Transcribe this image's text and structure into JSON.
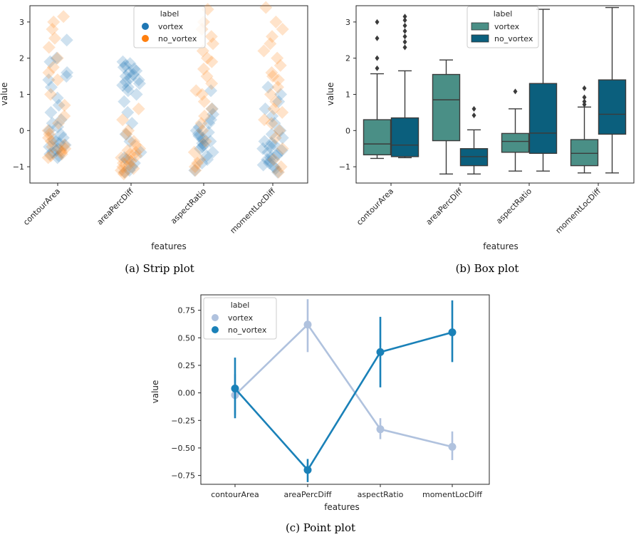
{
  "chart_data": [
    {
      "id": "strip",
      "type": "scatter",
      "caption": "(a) Strip plot",
      "xlabel": "features",
      "ylabel": "value",
      "categories": [
        "contourArea",
        "areaPercDiff",
        "aspectRatio",
        "momentLocDiff"
      ],
      "ylim": [
        -1.45,
        3.45
      ],
      "yticks": [
        -1,
        0,
        1,
        2,
        3
      ],
      "legend": {
        "title": "label",
        "position": "top-center",
        "entries": [
          "vortex",
          "no_vortex"
        ]
      },
      "colors": {
        "vortex": "#1f77b4",
        "no_vortex": "#ff7f0e"
      },
      "series": [
        {
          "name": "vortex",
          "values": [
            [
              -0.75,
              -0.7,
              -0.65,
              -0.6,
              -0.55,
              -0.5,
              -0.45,
              -0.4,
              -0.35,
              -0.3,
              -0.25,
              -0.2,
              -0.1,
              0.0,
              0.1,
              0.2,
              0.3,
              0.5,
              0.7,
              0.9,
              1.2,
              1.4,
              1.5,
              1.6,
              1.9,
              2.0,
              2.5
            ],
            [
              -1.15,
              -1.1,
              -1.0,
              -0.9,
              -0.8,
              -0.75,
              -0.6,
              -0.3,
              -0.1,
              0.2,
              0.5,
              0.8,
              1.0,
              1.1,
              1.2,
              1.25,
              1.3,
              1.35,
              1.4,
              1.45,
              1.5,
              1.55,
              1.6,
              1.65,
              1.7,
              1.75,
              1.8,
              1.85,
              1.9
            ],
            [
              -1.1,
              -0.9,
              -0.8,
              -0.7,
              -0.6,
              -0.5,
              -0.45,
              -0.4,
              -0.35,
              -0.3,
              -0.25,
              -0.2,
              -0.15,
              -0.1,
              -0.05,
              0.0,
              0.1,
              0.2,
              0.3,
              0.45,
              0.6,
              1.1
            ],
            [
              -1.15,
              -1.05,
              -1.0,
              -0.95,
              -0.9,
              -0.85,
              -0.8,
              -0.75,
              -0.7,
              -0.65,
              -0.6,
              -0.55,
              -0.5,
              -0.45,
              -0.4,
              -0.35,
              -0.3,
              -0.2,
              -0.1,
              0.0,
              0.2,
              0.4,
              0.6,
              0.8,
              1.0,
              1.2
            ]
          ]
        },
        {
          "name": "no_vortex",
          "values": [
            [
              -0.75,
              -0.7,
              -0.65,
              -0.6,
              -0.55,
              -0.5,
              -0.45,
              -0.4,
              -0.3,
              -0.2,
              -0.1,
              0.0,
              0.2,
              0.4,
              0.7,
              1.0,
              1.4,
              1.6,
              1.75,
              2.0,
              2.3,
              2.55,
              2.8,
              3.0,
              3.15
            ],
            [
              -1.2,
              -1.15,
              -1.1,
              -1.05,
              -1.0,
              -0.95,
              -0.9,
              -0.85,
              -0.8,
              -0.75,
              -0.7,
              -0.65,
              -0.6,
              -0.55,
              -0.5,
              -0.4,
              -0.3,
              -0.1,
              0.0,
              0.3,
              0.6
            ],
            [
              -1.1,
              -1.0,
              -0.9,
              -0.8,
              -0.6,
              -0.3,
              0.0,
              0.2,
              0.4,
              0.6,
              0.8,
              1.0,
              1.1,
              1.3,
              1.5,
              1.7,
              1.9,
              2.0,
              2.2,
              2.4,
              2.6,
              2.8,
              3.0,
              3.35
            ],
            [
              -1.15,
              -1.0,
              -0.8,
              -0.5,
              -0.2,
              0.0,
              0.2,
              0.3,
              0.5,
              0.6,
              0.8,
              1.0,
              1.2,
              1.4,
              1.5,
              1.6,
              1.8,
              2.0,
              2.2,
              2.4,
              2.6,
              2.8,
              3.0,
              3.4
            ]
          ]
        }
      ]
    },
    {
      "id": "box",
      "type": "box",
      "caption": "(b) Box plot",
      "xlabel": "features",
      "ylabel": "value",
      "categories": [
        "contourArea",
        "areaPercDiff",
        "aspectRatio",
        "momentLocDiff"
      ],
      "ylim": [
        -1.45,
        3.45
      ],
      "yticks": [
        -1,
        0,
        1,
        2,
        3
      ],
      "legend": {
        "title": "label",
        "position": "top-center",
        "entries": [
          "vortex",
          "no_vortex"
        ]
      },
      "colors": {
        "vortex": "#4a8f86",
        "no_vortex": "#0b5f7d"
      },
      "series": [
        {
          "name": "vortex",
          "boxes": [
            {
              "q1": -0.67,
              "median": -0.37,
              "q3": 0.3,
              "whisker_low": -0.77,
              "whisker_high": 1.57,
              "outliers": [
                1.72,
                2.0,
                2.55,
                3.0
              ]
            },
            {
              "q1": -0.28,
              "median": 0.85,
              "q3": 1.55,
              "whisker_low": -1.2,
              "whisker_high": 1.95,
              "outliers": []
            },
            {
              "q1": -0.6,
              "median": -0.3,
              "q3": -0.08,
              "whisker_low": -1.12,
              "whisker_high": 0.6,
              "outliers": [
                1.08
              ]
            },
            {
              "q1": -0.97,
              "median": -0.63,
              "q3": -0.25,
              "whisker_low": -1.17,
              "whisker_high": 0.65,
              "outliers": [
                0.72,
                0.8,
                0.92,
                1.17
              ]
            }
          ]
        },
        {
          "name": "no_vortex",
          "boxes": [
            {
              "q1": -0.72,
              "median": -0.4,
              "q3": 0.35,
              "whisker_low": -0.75,
              "whisker_high": 1.65,
              "outliers": [
                2.3,
                2.45,
                2.6,
                2.75,
                2.9,
                3.05,
                3.15
              ]
            },
            {
              "q1": -0.97,
              "median": -0.72,
              "q3": -0.5,
              "whisker_low": -1.2,
              "whisker_high": 0.02,
              "outliers": [
                0.42,
                0.6
              ]
            },
            {
              "q1": -0.63,
              "median": -0.07,
              "q3": 1.3,
              "whisker_low": -1.12,
              "whisker_high": 3.35,
              "outliers": []
            },
            {
              "q1": -0.1,
              "median": 0.45,
              "q3": 1.4,
              "whisker_low": -1.17,
              "whisker_high": 3.4,
              "outliers": []
            }
          ]
        }
      ]
    },
    {
      "id": "point",
      "type": "line",
      "caption": "(c) Point plot",
      "xlabel": "features",
      "ylabel": "value",
      "categories": [
        "contourArea",
        "areaPercDiff",
        "aspectRatio",
        "momentLocDiff"
      ],
      "ylim": [
        -0.83,
        0.89
      ],
      "yticks": [
        -0.75,
        -0.5,
        -0.25,
        0.0,
        0.25,
        0.5,
        0.75
      ],
      "ytick_labels": [
        "−0.75",
        "−0.50",
        "−0.25",
        "0.00",
        "0.25",
        "0.50",
        "0.75"
      ],
      "legend": {
        "title": "label",
        "position": "top-left",
        "entries": [
          "vortex",
          "no_vortex"
        ]
      },
      "colors": {
        "vortex": "#b0c2de",
        "no_vortex": "#1a81b8"
      },
      "series": [
        {
          "name": "vortex",
          "values": [
            -0.02,
            0.62,
            -0.33,
            -0.49
          ],
          "ci_low": [
            -0.2,
            0.37,
            -0.42,
            -0.61
          ],
          "ci_high": [
            0.17,
            0.85,
            -0.23,
            -0.35
          ]
        },
        {
          "name": "no_vortex",
          "values": [
            0.04,
            -0.7,
            0.37,
            0.55
          ],
          "ci_low": [
            -0.23,
            -0.81,
            0.05,
            0.28
          ],
          "ci_high": [
            0.32,
            -0.6,
            0.69,
            0.84
          ]
        }
      ]
    }
  ]
}
